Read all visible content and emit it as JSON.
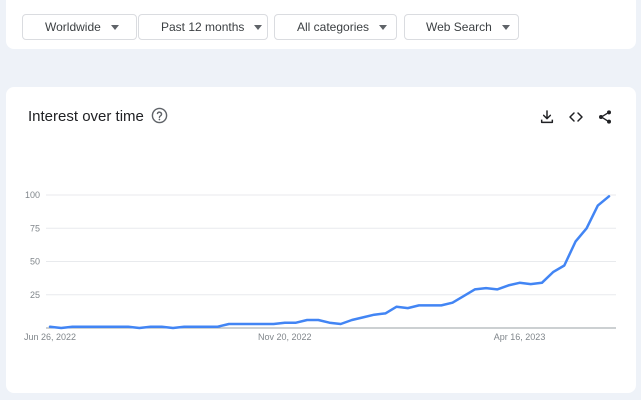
{
  "filters": {
    "region": "Worldwide",
    "time_range": "Past 12 months",
    "category": "All categories",
    "search_type": "Web Search"
  },
  "chart_header": {
    "title": "Interest over time",
    "help_icon": "help-circle-icon",
    "actions": [
      "download-icon",
      "embed-code-icon",
      "share-icon"
    ]
  },
  "chart_data": {
    "type": "line",
    "title": "Interest over time",
    "xlabel": "",
    "ylabel": "",
    "ylim": [
      0,
      100
    ],
    "yticks": [
      100,
      75,
      50,
      25
    ],
    "xtick_labels": [
      {
        "label": "Jun 26, 2022",
        "index": 0
      },
      {
        "label": "Nov 20, 2022",
        "index": 21
      },
      {
        "label": "Apr 16, 2023",
        "index": 42
      }
    ],
    "grid": true,
    "line_color": "#4285f4",
    "series": [
      {
        "values": [
          1,
          0,
          1,
          1,
          1,
          1,
          1,
          1,
          0,
          1,
          1,
          0,
          1,
          1,
          1,
          1,
          3,
          3,
          3,
          3,
          3,
          4,
          4,
          6,
          6,
          4,
          3,
          6,
          8,
          10,
          11,
          16,
          15,
          17,
          17,
          17,
          19,
          24,
          29,
          30,
          29,
          32,
          34,
          33,
          34,
          42,
          47,
          65,
          75,
          92,
          99
        ]
      }
    ]
  }
}
